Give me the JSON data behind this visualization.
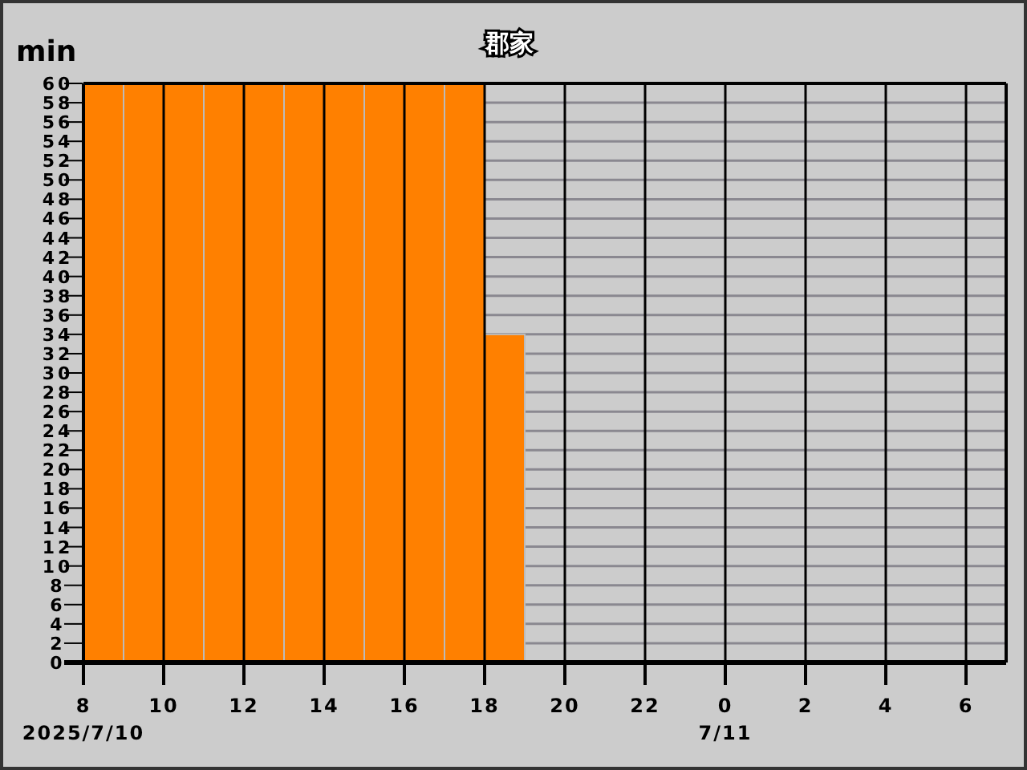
{
  "chart_data": {
    "type": "bar",
    "title": "郡家",
    "ylabel": "min",
    "x": [
      "2025-07-10T08:30",
      "2025-07-10T09:30",
      "2025-07-10T10:30",
      "2025-07-10T11:30",
      "2025-07-10T12:30",
      "2025-07-10T13:30",
      "2025-07-10T14:30",
      "2025-07-10T15:30",
      "2025-07-10T16:30",
      "2025-07-10T17:30",
      "2025-07-10T18:30"
    ],
    "values": [
      60,
      60,
      60,
      60,
      60,
      60,
      60,
      60,
      60,
      60,
      34
    ],
    "color": "#ff8000",
    "xlim": [
      "2025-07-10T08:00",
      "2025-07-11T07:00"
    ],
    "xticks": [
      {
        "value": "2025-07-10T08:00",
        "label": "8\n2025/7/10"
      },
      {
        "value": "2025-07-10T10:00",
        "label": "10"
      },
      {
        "value": "2025-07-10T12:00",
        "label": "12"
      },
      {
        "value": "2025-07-10T14:00",
        "label": "14"
      },
      {
        "value": "2025-07-10T16:00",
        "label": "16"
      },
      {
        "value": "2025-07-10T18:00",
        "label": "18"
      },
      {
        "value": "2025-07-10T20:00",
        "label": "20"
      },
      {
        "value": "2025-07-10T22:00",
        "label": "22"
      },
      {
        "value": "2025-07-11T00:00",
        "label": "0\n7/11"
      },
      {
        "value": "2025-07-11T02:00",
        "label": "2"
      },
      {
        "value": "2025-07-11T04:00",
        "label": "4"
      },
      {
        "value": "2025-07-11T06:00",
        "label": "6"
      }
    ],
    "ylim": [
      0,
      60
    ],
    "yticks": [
      0,
      2,
      4,
      6,
      8,
      10,
      12,
      14,
      16,
      18,
      20,
      22,
      24,
      26,
      28,
      30,
      32,
      34,
      36,
      38,
      40,
      42,
      44,
      46,
      48,
      50,
      52,
      54,
      56,
      58,
      60
    ],
    "grid": true
  }
}
